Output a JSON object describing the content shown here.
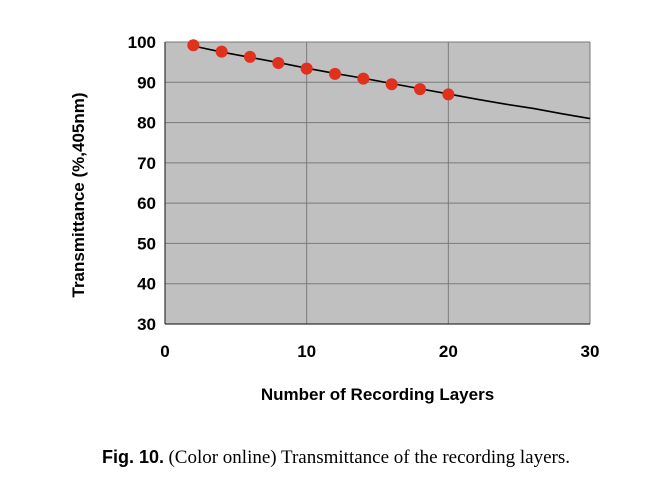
{
  "chart_data": {
    "type": "line",
    "xlabel": "Number of Recording Layers",
    "ylabel": "Transmittance (%,405nm)",
    "xlim": [
      0,
      30
    ],
    "ylim": [
      30,
      100
    ],
    "xticks": [
      0,
      10,
      20,
      30
    ],
    "yticks": [
      30,
      40,
      50,
      60,
      70,
      80,
      90,
      100
    ],
    "grid": true,
    "background_color": "#c0c0c0",
    "series": [
      {
        "kind": "line",
        "color": "#000000",
        "x": [
          2,
          4,
          6,
          8,
          10,
          12,
          14,
          16,
          18,
          20,
          22,
          24,
          26,
          28,
          30
        ],
        "y": [
          99.0,
          97.5,
          96.2,
          94.9,
          93.5,
          92.2,
          91.0,
          89.7,
          88.4,
          87.1,
          85.8,
          84.6,
          83.5,
          82.2,
          81.0
        ]
      },
      {
        "kind": "scatter",
        "color": "#e0301e",
        "x": [
          2,
          4,
          6,
          8,
          10,
          12,
          14,
          16,
          18,
          20
        ],
        "y": [
          99.2,
          97.6,
          96.3,
          94.8,
          93.4,
          92.1,
          90.9,
          89.5,
          88.3,
          87.0
        ]
      }
    ]
  },
  "caption": {
    "label": "Fig. 10.",
    "text": "(Color online) Transmittance of the recording layers."
  }
}
